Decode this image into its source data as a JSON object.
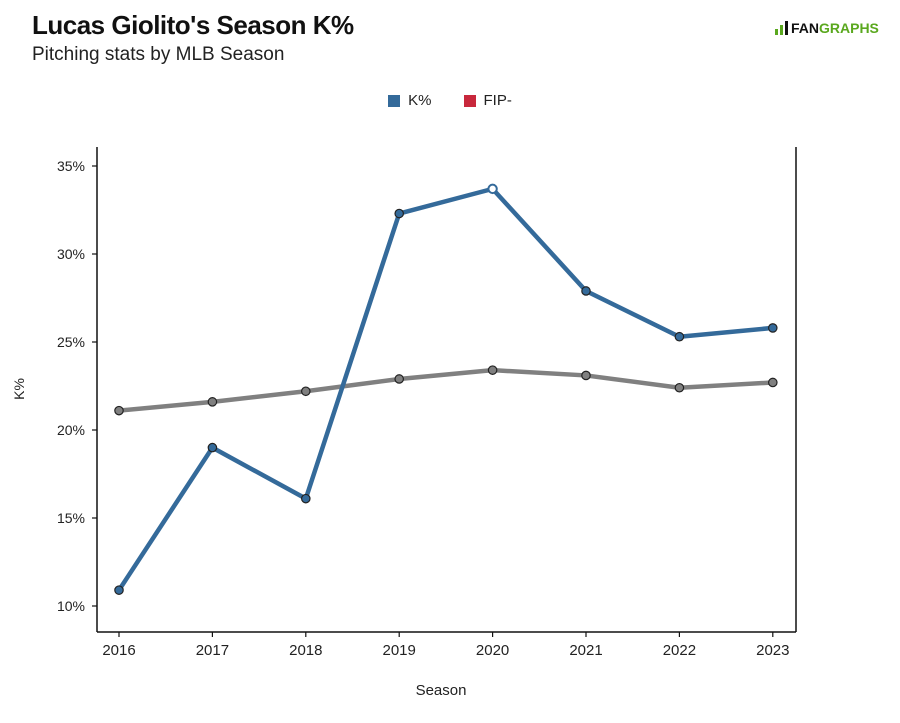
{
  "header": {
    "title": "Lucas Giolito's Season K%",
    "subtitle": "Pitching stats by MLB Season"
  },
  "logo": {
    "text_prefix": "FAN",
    "text_suffix": "GRAPHS",
    "icon": "fangraphs-logo-icon"
  },
  "colors": {
    "kpct": "#346a9a",
    "fip": "#c8283c",
    "league": "#808080"
  },
  "legend": {
    "items": [
      {
        "label": "K%",
        "color": "#346a9a"
      },
      {
        "label": "FIP-",
        "color": "#c8283c"
      }
    ]
  },
  "chart_data": {
    "type": "line",
    "title": "Lucas Giolito's Season K%",
    "subtitle": "Pitching stats by MLB Season",
    "xlabel": "Season",
    "ylabel": "K%",
    "x": [
      "2016",
      "2017",
      "2018",
      "2019",
      "2020",
      "2021",
      "2022",
      "2023"
    ],
    "ylim": [
      9,
      36
    ],
    "yticks": [
      10,
      15,
      20,
      25,
      30,
      35
    ],
    "ytick_labels": [
      "10%",
      "15%",
      "20%",
      "25%",
      "30%",
      "35%"
    ],
    "grid": false,
    "legend_position": "top-center",
    "series": [
      {
        "name": "K%",
        "values": [
          10.9,
          19.0,
          16.1,
          32.3,
          33.7,
          27.9,
          25.3,
          25.8
        ],
        "color": "#346a9a",
        "hollow_point_index": 4
      },
      {
        "values": [
          21.1,
          21.6,
          22.2,
          22.9,
          23.4,
          23.1,
          22.4,
          22.7
        ],
        "color": "#808080"
      }
    ]
  }
}
